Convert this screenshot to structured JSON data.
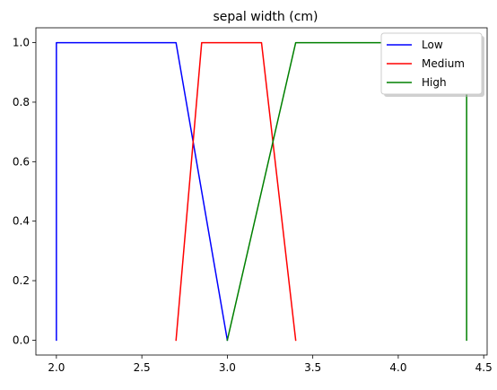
{
  "chart_data": {
    "type": "line",
    "title": "sepal width (cm)",
    "xlabel": "",
    "ylabel": "",
    "xlim": [
      1.88,
      4.52
    ],
    "ylim": [
      -0.05,
      1.05
    ],
    "xticks": [
      2.0,
      2.5,
      3.0,
      3.5,
      4.0,
      4.5
    ],
    "xtick_labels": [
      "2.0",
      "2.5",
      "3.0",
      "3.5",
      "4.0",
      "4.5"
    ],
    "yticks": [
      0.0,
      0.2,
      0.4,
      0.6,
      0.8,
      1.0
    ],
    "ytick_labels": [
      "0.0",
      "0.2",
      "0.4",
      "0.6",
      "0.8",
      "1.0"
    ],
    "grid": false,
    "legend_position": "top-right",
    "series": [
      {
        "name": "Low",
        "color": "#0000ff",
        "x": [
          2.0,
          2.0,
          2.7,
          3.0
        ],
        "y": [
          0,
          1,
          1,
          0
        ]
      },
      {
        "name": "Medium",
        "color": "#ff0000",
        "x": [
          2.7,
          2.85,
          3.2,
          3.4
        ],
        "y": [
          0,
          1,
          1,
          0
        ]
      },
      {
        "name": "High",
        "color": "#008000",
        "x": [
          3.0,
          3.4,
          4.4,
          4.4
        ],
        "y": [
          0,
          1,
          1,
          0
        ]
      }
    ]
  }
}
